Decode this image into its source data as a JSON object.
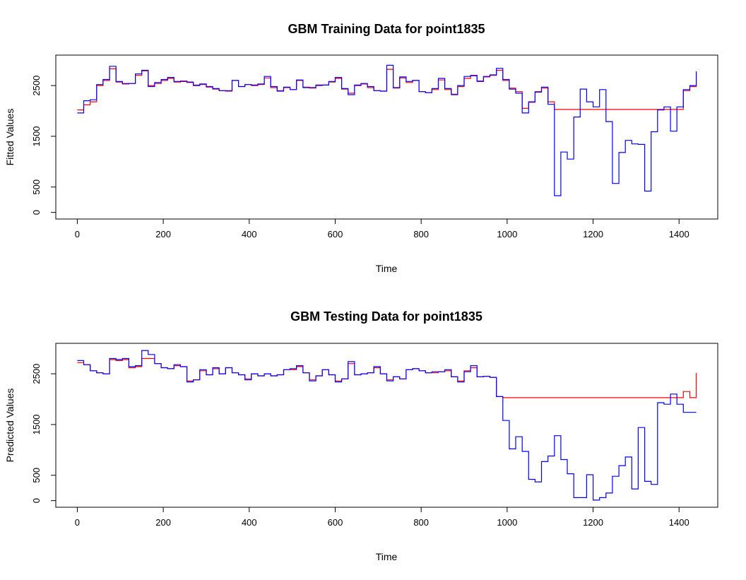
{
  "colors": {
    "fitted": "#ff0000",
    "actual": "#0000ff",
    "axis": "#000000"
  },
  "chart_data": [
    {
      "type": "line",
      "title": "GBM Training Data for  point1835",
      "xlabel": "Time",
      "ylabel": "Fitted Values",
      "xlim": [
        -50,
        1490
      ],
      "ylim": [
        -130,
        3100
      ],
      "x_ticks": [
        0,
        200,
        400,
        600,
        800,
        1000,
        1200,
        1400
      ],
      "y_ticks": [
        0,
        500,
        1500,
        2500
      ],
      "series": [
        {
          "color": "red",
          "step": true,
          "x": [
            0,
            15,
            30,
            45,
            60,
            75,
            90,
            105,
            120,
            135,
            150,
            165,
            180,
            195,
            210,
            225,
            240,
            255,
            270,
            285,
            300,
            315,
            330,
            345,
            360,
            375,
            390,
            405,
            420,
            435,
            450,
            465,
            480,
            495,
            510,
            525,
            540,
            555,
            570,
            585,
            600,
            615,
            630,
            645,
            660,
            675,
            690,
            705,
            720,
            735,
            750,
            765,
            780,
            795,
            810,
            825,
            840,
            855,
            870,
            885,
            900,
            915,
            930,
            945,
            960,
            975,
            990,
            1005,
            1020,
            1035,
            1050,
            1065,
            1080,
            1095,
            1110,
            1125,
            1140,
            1155,
            1170,
            1185,
            1200,
            1215,
            1230,
            1245,
            1260,
            1275,
            1290,
            1305,
            1320,
            1335,
            1350,
            1365,
            1380,
            1395,
            1410,
            1425,
            1440
          ],
          "values": [
            2020,
            2120,
            2180,
            2500,
            2600,
            2830,
            2570,
            2530,
            2540,
            2700,
            2790,
            2500,
            2540,
            2600,
            2640,
            2570,
            2590,
            2560,
            2510,
            2520,
            2470,
            2430,
            2400,
            2390,
            2600,
            2480,
            2520,
            2500,
            2520,
            2650,
            2460,
            2400,
            2460,
            2420,
            2600,
            2470,
            2450,
            2500,
            2510,
            2570,
            2640,
            2430,
            2350,
            2500,
            2530,
            2460,
            2400,
            2390,
            2820,
            2450,
            2650,
            2560,
            2600,
            2380,
            2360,
            2420,
            2610,
            2420,
            2330,
            2480,
            2640,
            2690,
            2590,
            2670,
            2700,
            2800,
            2600,
            2450,
            2380,
            2050,
            2170,
            2380,
            2450,
            2180,
            2030,
            2030,
            2030,
            2030,
            2030,
            2030,
            2030,
            2030,
            2030,
            2030,
            2030,
            2030,
            2030,
            2030,
            2030,
            2030,
            2030,
            2030,
            2030,
            2030,
            2400,
            2480,
            2750
          ]
        },
        {
          "color": "blue",
          "step": true,
          "x": [
            0,
            15,
            30,
            45,
            60,
            75,
            90,
            105,
            120,
            135,
            150,
            165,
            180,
            195,
            210,
            225,
            240,
            255,
            270,
            285,
            300,
            315,
            330,
            345,
            360,
            375,
            390,
            405,
            420,
            435,
            450,
            465,
            480,
            495,
            510,
            525,
            540,
            555,
            570,
            585,
            600,
            615,
            630,
            645,
            660,
            675,
            690,
            705,
            720,
            735,
            750,
            765,
            780,
            795,
            810,
            825,
            840,
            855,
            870,
            885,
            900,
            915,
            930,
            945,
            960,
            975,
            990,
            1005,
            1020,
            1035,
            1050,
            1065,
            1080,
            1095,
            1110,
            1125,
            1140,
            1155,
            1170,
            1185,
            1200,
            1215,
            1230,
            1245,
            1260,
            1275,
            1290,
            1305,
            1320,
            1335,
            1350,
            1365,
            1380,
            1395,
            1410,
            1425,
            1440
          ],
          "values": [
            1960,
            2200,
            2220,
            2520,
            2620,
            2880,
            2580,
            2540,
            2540,
            2730,
            2800,
            2480,
            2560,
            2620,
            2660,
            2580,
            2580,
            2570,
            2500,
            2530,
            2480,
            2440,
            2400,
            2400,
            2600,
            2480,
            2520,
            2510,
            2530,
            2680,
            2480,
            2390,
            2470,
            2420,
            2610,
            2460,
            2460,
            2510,
            2510,
            2580,
            2660,
            2440,
            2320,
            2510,
            2540,
            2480,
            2400,
            2390,
            2900,
            2460,
            2670,
            2580,
            2600,
            2380,
            2360,
            2440,
            2640,
            2440,
            2320,
            2500,
            2680,
            2700,
            2580,
            2680,
            2710,
            2840,
            2620,
            2430,
            2350,
            1960,
            2180,
            2370,
            2470,
            2130,
            330,
            1190,
            1050,
            1880,
            2430,
            2180,
            2080,
            2420,
            1790,
            570,
            1180,
            1420,
            1350,
            1340,
            420,
            1590,
            2020,
            2080,
            1600,
            2080,
            2420,
            2500,
            2780
          ]
        }
      ]
    },
    {
      "type": "line",
      "title": "GBM Testing Data for  point1835",
      "xlabel": "Time",
      "ylabel": "Predicted Values",
      "xlim": [
        -50,
        1490
      ],
      "ylim": [
        -130,
        3100
      ],
      "x_ticks": [
        0,
        200,
        400,
        600,
        800,
        1000,
        1200,
        1400
      ],
      "y_ticks": [
        0,
        500,
        1500,
        2500
      ],
      "series": [
        {
          "color": "red",
          "step": true,
          "x": [
            0,
            15,
            30,
            45,
            60,
            75,
            90,
            105,
            120,
            135,
            150,
            165,
            180,
            195,
            210,
            225,
            240,
            255,
            270,
            285,
            300,
            315,
            330,
            345,
            360,
            375,
            390,
            405,
            420,
            435,
            450,
            465,
            480,
            495,
            510,
            525,
            540,
            555,
            570,
            585,
            600,
            615,
            630,
            645,
            660,
            675,
            690,
            705,
            720,
            735,
            750,
            765,
            780,
            795,
            810,
            825,
            840,
            855,
            870,
            885,
            900,
            915,
            930,
            945,
            960,
            975,
            990,
            1005,
            1020,
            1035,
            1050,
            1065,
            1080,
            1095,
            1110,
            1125,
            1140,
            1155,
            1170,
            1185,
            1200,
            1215,
            1230,
            1245,
            1260,
            1275,
            1290,
            1305,
            1320,
            1335,
            1350,
            1365,
            1380,
            1395,
            1410,
            1425,
            1440
          ],
          "values": [
            2720,
            2680,
            2560,
            2520,
            2500,
            2780,
            2760,
            2780,
            2620,
            2640,
            2800,
            2800,
            2700,
            2620,
            2600,
            2660,
            2640,
            2360,
            2380,
            2560,
            2480,
            2600,
            2500,
            2620,
            2520,
            2480,
            2400,
            2500,
            2460,
            2500,
            2460,
            2480,
            2580,
            2580,
            2640,
            2520,
            2380,
            2460,
            2580,
            2480,
            2360,
            2400,
            2700,
            2480,
            2500,
            2520,
            2620,
            2500,
            2380,
            2440,
            2400,
            2580,
            2600,
            2560,
            2520,
            2520,
            2540,
            2560,
            2440,
            2360,
            2560,
            2620,
            2440,
            2450,
            2430,
            2050,
            2030,
            2030,
            2030,
            2030,
            2030,
            2030,
            2030,
            2030,
            2030,
            2030,
            2030,
            2030,
            2030,
            2030,
            2030,
            2030,
            2030,
            2030,
            2030,
            2030,
            2030,
            2030,
            2030,
            2030,
            2030,
            2030,
            2030,
            2030,
            2150,
            2030,
            2520
          ]
        },
        {
          "color": "blue",
          "step": true,
          "x": [
            0,
            15,
            30,
            45,
            60,
            75,
            90,
            105,
            120,
            135,
            150,
            165,
            180,
            195,
            210,
            225,
            240,
            255,
            270,
            285,
            300,
            315,
            330,
            345,
            360,
            375,
            390,
            405,
            420,
            435,
            450,
            465,
            480,
            495,
            510,
            525,
            540,
            555,
            570,
            585,
            600,
            615,
            630,
            645,
            660,
            675,
            690,
            705,
            720,
            735,
            750,
            765,
            780,
            795,
            810,
            825,
            840,
            855,
            870,
            885,
            900,
            915,
            930,
            945,
            960,
            975,
            990,
            1005,
            1020,
            1035,
            1050,
            1065,
            1080,
            1095,
            1110,
            1125,
            1140,
            1155,
            1170,
            1185,
            1200,
            1215,
            1230,
            1245,
            1260,
            1275,
            1290,
            1305,
            1320,
            1335,
            1350,
            1365,
            1380,
            1395,
            1410,
            1425,
            1440
          ],
          "values": [
            2760,
            2680,
            2560,
            2520,
            2500,
            2800,
            2780,
            2800,
            2640,
            2660,
            2960,
            2880,
            2700,
            2620,
            2600,
            2680,
            2640,
            2340,
            2380,
            2580,
            2480,
            2620,
            2500,
            2620,
            2520,
            2480,
            2380,
            2500,
            2460,
            2500,
            2460,
            2480,
            2580,
            2600,
            2660,
            2520,
            2360,
            2460,
            2580,
            2480,
            2340,
            2400,
            2740,
            2480,
            2500,
            2520,
            2640,
            2500,
            2360,
            2440,
            2400,
            2580,
            2600,
            2560,
            2520,
            2540,
            2540,
            2580,
            2440,
            2340,
            2540,
            2660,
            2440,
            2450,
            2430,
            2050,
            1580,
            1020,
            1260,
            970,
            420,
            370,
            770,
            880,
            1280,
            810,
            530,
            60,
            60,
            510,
            10,
            60,
            150,
            480,
            690,
            860,
            230,
            1440,
            380,
            320,
            1930,
            1900,
            2100,
            1900,
            1740,
            1740,
            1740
          ]
        }
      ]
    }
  ]
}
